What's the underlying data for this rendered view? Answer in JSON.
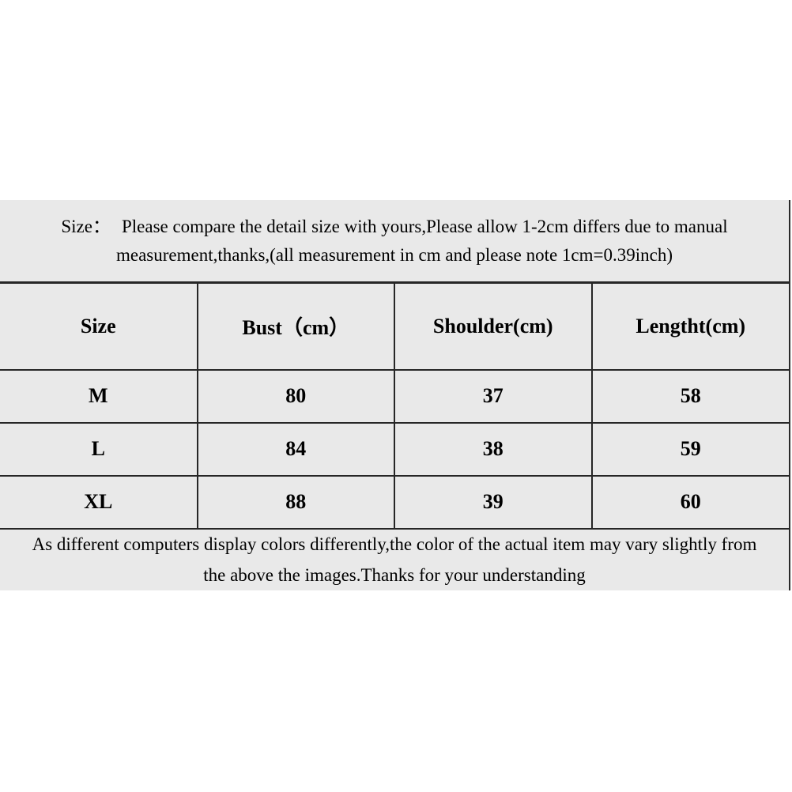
{
  "colors": {
    "page_background": "#ffffff",
    "panel_background": "#e9e9e9",
    "table_border": "#262626",
    "text": "#000000"
  },
  "intro": {
    "label": "Size：",
    "line1": "Please compare the detail size with yours,Please allow 1-2cm differs due to manual",
    "line2": "measurement,thanks,(all measurement in cm and please note 1cm=0.39inch)"
  },
  "size_table": {
    "headers": [
      "Size",
      "Bust（cm）",
      "Shoulder(cm)",
      "Lengtht(cm)"
    ],
    "rows": [
      [
        "M",
        "80",
        "37",
        "58"
      ],
      [
        "L",
        "84",
        "38",
        "59"
      ],
      [
        "XL",
        "88",
        "39",
        "60"
      ]
    ]
  },
  "disclaimer": {
    "line1": "As different computers display colors differently,the color of the actual item may vary slightly from",
    "line2": "the above the images.Thanks for your understanding"
  }
}
